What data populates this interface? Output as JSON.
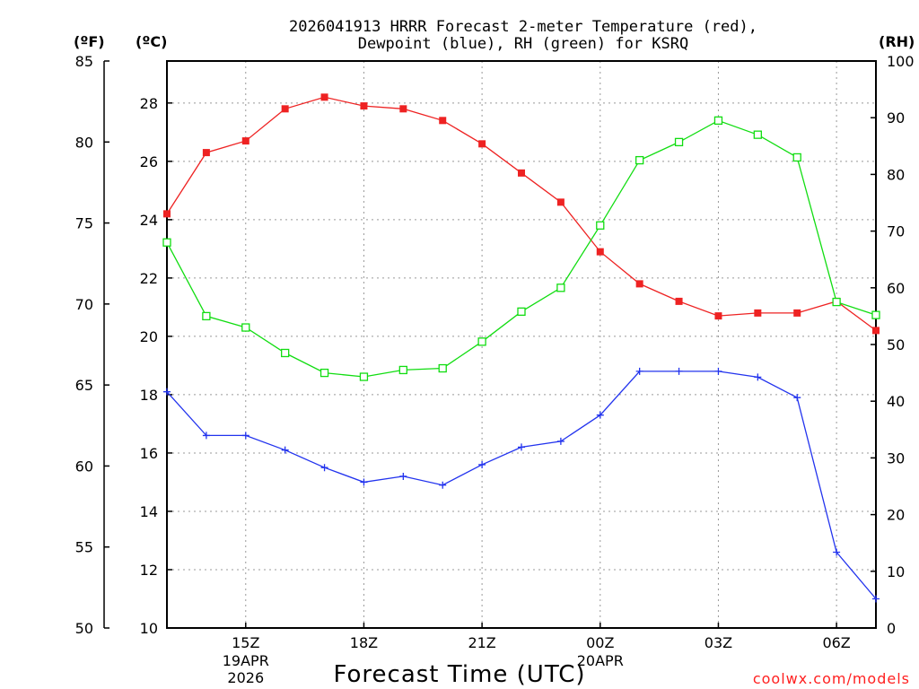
{
  "chart_data": {
    "type": "line",
    "title_line1": "2026041913 HRRR Forecast 2-meter Temperature (red),",
    "title_line2": "Dewpoint (blue), RH (green) for KSRQ",
    "xlabel": "Forecast Time (UTC)",
    "credit": "coolwx.com/models",
    "units": {
      "f": "(ºF)",
      "c": "(ºC)",
      "rh": "(RH)"
    },
    "hours": [
      13,
      14,
      15,
      16,
      17,
      18,
      19,
      20,
      21,
      22,
      23,
      24,
      25,
      26,
      27,
      28,
      29,
      30,
      31
    ],
    "xlim": [
      13,
      31
    ],
    "x_ticks": [
      {
        "hour": 15,
        "label": "15Z",
        "sub1": "19APR",
        "sub2": "2026"
      },
      {
        "hour": 18,
        "label": "18Z",
        "sub1": "",
        "sub2": ""
      },
      {
        "hour": 21,
        "label": "21Z",
        "sub1": "",
        "sub2": ""
      },
      {
        "hour": 24,
        "label": "00Z",
        "sub1": "20APR",
        "sub2": ""
      },
      {
        "hour": 27,
        "label": "03Z",
        "sub1": "",
        "sub2": ""
      },
      {
        "hour": 30,
        "label": "06Z",
        "sub1": "",
        "sub2": ""
      }
    ],
    "f_axis": {
      "range": [
        50,
        85
      ],
      "ticks": [
        50,
        55,
        60,
        65,
        70,
        75,
        80,
        85
      ]
    },
    "c_axis": {
      "range": [
        10,
        29.44
      ],
      "ticks": [
        10,
        12,
        14,
        16,
        18,
        20,
        22,
        24,
        26,
        28
      ]
    },
    "rh_axis": {
      "range": [
        0,
        100
      ],
      "ticks": [
        0,
        10,
        20,
        30,
        40,
        50,
        60,
        70,
        80,
        90,
        100
      ]
    },
    "series": [
      {
        "name": "Temperature",
        "axis": "c",
        "color": "#ee2222",
        "marker": "filled-square",
        "values": [
          24.2,
          26.3,
          26.7,
          27.8,
          28.2,
          27.9,
          27.8,
          27.4,
          26.6,
          25.6,
          24.6,
          22.9,
          21.8,
          21.2,
          20.7,
          20.8,
          20.8,
          21.2,
          20.2
        ]
      },
      {
        "name": "Dewpoint",
        "axis": "c",
        "color": "#2233ee",
        "marker": "plus",
        "values": [
          18.1,
          16.6,
          16.6,
          16.1,
          15.5,
          15.0,
          15.2,
          14.9,
          15.6,
          16.2,
          16.4,
          17.3,
          18.8,
          18.8,
          18.8,
          18.6,
          17.9,
          12.6,
          11.0
        ]
      },
      {
        "name": "RH",
        "axis": "rh",
        "color": "#11dd11",
        "marker": "open-square",
        "values": [
          68,
          55,
          53,
          48.5,
          45,
          44.3,
          45.5,
          45.8,
          50.5,
          55.8,
          60,
          71,
          82.5,
          85.7,
          89.5,
          87,
          83,
          57.5,
          55.2
        ]
      }
    ]
  }
}
